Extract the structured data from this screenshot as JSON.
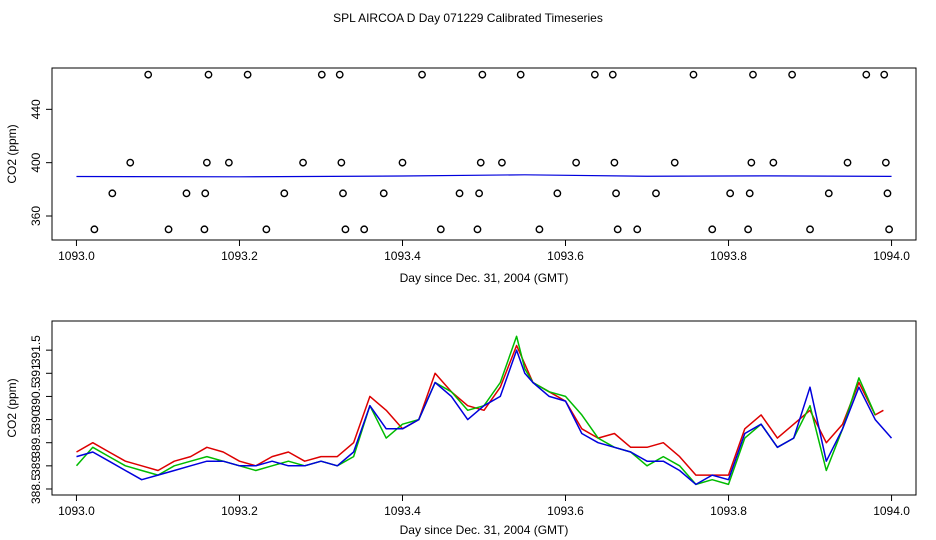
{
  "title": "SPL AIRCOA D  Day 071229  Calibrated Timeseries",
  "colors": {
    "red": "#dd0000",
    "green": "#00bb00",
    "blue": "#0000dd",
    "axis": "#000000"
  },
  "chart_data": [
    {
      "type": "scatter",
      "xlabel": "Day since Dec. 31, 2004 (GMT)",
      "ylabel": "CO2 (ppm)",
      "xlim": [
        1092.97,
        1094.03
      ],
      "ylim": [
        342,
        471
      ],
      "xticks": [
        1093.0,
        1093.2,
        1093.4,
        1093.6,
        1093.8,
        1094.0
      ],
      "xtick_labels": [
        "1093.0",
        "1093.2",
        "1093.4",
        "1093.6",
        "1093.8",
        "1094.0"
      ],
      "yticks": [
        360,
        400,
        440
      ],
      "ytick_labels": [
        "360",
        "400",
        "440"
      ],
      "line": {
        "x": [
          1093.0,
          1093.2,
          1093.4,
          1093.55,
          1093.7,
          1093.85,
          1094.0
        ],
        "y": [
          389.6,
          389.4,
          390.0,
          390.9,
          389.8,
          390.1,
          389.7
        ]
      },
      "points": [
        {
          "x": 1093.022,
          "y": 350
        },
        {
          "x": 1093.044,
          "y": 377
        },
        {
          "x": 1093.066,
          "y": 400
        },
        {
          "x": 1093.088,
          "y": 466
        },
        {
          "x": 1093.113,
          "y": 350
        },
        {
          "x": 1093.135,
          "y": 377
        },
        {
          "x": 1093.157,
          "y": 350
        },
        {
          "x": 1093.158,
          "y": 377
        },
        {
          "x": 1093.16,
          "y": 400
        },
        {
          "x": 1093.162,
          "y": 466
        },
        {
          "x": 1093.187,
          "y": 400
        },
        {
          "x": 1093.21,
          "y": 466
        },
        {
          "x": 1093.233,
          "y": 350
        },
        {
          "x": 1093.255,
          "y": 377
        },
        {
          "x": 1093.278,
          "y": 400
        },
        {
          "x": 1093.301,
          "y": 466
        },
        {
          "x": 1093.323,
          "y": 466
        },
        {
          "x": 1093.325,
          "y": 400
        },
        {
          "x": 1093.327,
          "y": 377
        },
        {
          "x": 1093.33,
          "y": 350
        },
        {
          "x": 1093.353,
          "y": 350
        },
        {
          "x": 1093.377,
          "y": 377
        },
        {
          "x": 1093.4,
          "y": 400
        },
        {
          "x": 1093.424,
          "y": 466
        },
        {
          "x": 1093.447,
          "y": 350
        },
        {
          "x": 1093.47,
          "y": 377
        },
        {
          "x": 1093.492,
          "y": 350
        },
        {
          "x": 1093.494,
          "y": 377
        },
        {
          "x": 1093.496,
          "y": 400
        },
        {
          "x": 1093.498,
          "y": 466
        },
        {
          "x": 1093.522,
          "y": 400
        },
        {
          "x": 1093.545,
          "y": 466
        },
        {
          "x": 1093.568,
          "y": 350
        },
        {
          "x": 1093.59,
          "y": 377
        },
        {
          "x": 1093.613,
          "y": 400
        },
        {
          "x": 1093.636,
          "y": 466
        },
        {
          "x": 1093.658,
          "y": 466
        },
        {
          "x": 1093.66,
          "y": 400
        },
        {
          "x": 1093.662,
          "y": 377
        },
        {
          "x": 1093.664,
          "y": 350
        },
        {
          "x": 1093.688,
          "y": 350
        },
        {
          "x": 1093.711,
          "y": 377
        },
        {
          "x": 1093.734,
          "y": 400
        },
        {
          "x": 1093.757,
          "y": 466
        },
        {
          "x": 1093.78,
          "y": 350
        },
        {
          "x": 1093.802,
          "y": 377
        },
        {
          "x": 1093.824,
          "y": 350
        },
        {
          "x": 1093.826,
          "y": 377
        },
        {
          "x": 1093.828,
          "y": 400
        },
        {
          "x": 1093.83,
          "y": 466
        },
        {
          "x": 1093.855,
          "y": 400
        },
        {
          "x": 1093.878,
          "y": 466
        },
        {
          "x": 1093.9,
          "y": 350
        },
        {
          "x": 1093.923,
          "y": 377
        },
        {
          "x": 1093.946,
          "y": 400
        },
        {
          "x": 1093.969,
          "y": 466
        },
        {
          "x": 1093.991,
          "y": 466
        },
        {
          "x": 1093.993,
          "y": 400
        },
        {
          "x": 1093.995,
          "y": 377
        },
        {
          "x": 1093.997,
          "y": 350
        }
      ]
    },
    {
      "type": "line",
      "xlabel": "Day since Dec. 31, 2004 (GMT)",
      "ylabel": "CO2 (ppm)",
      "xlim": [
        1092.97,
        1094.03
      ],
      "ylim": [
        388.37,
        392.13
      ],
      "xticks": [
        1093.0,
        1093.2,
        1093.4,
        1093.6,
        1093.8,
        1094.0
      ],
      "xtick_labels": [
        "1093.0",
        "1093.2",
        "1093.4",
        "1093.6",
        "1093.8",
        "1094.0"
      ],
      "yticks": [
        388.5,
        389.0,
        389.5,
        390.0,
        390.5,
        391.0,
        391.5
      ],
      "ytick_labels": [
        "388.5",
        "389",
        "389.5",
        "390",
        "390.5",
        "391",
        "391.5"
      ],
      "series": [
        {
          "color": "red",
          "x": [
            1093.0,
            1093.02,
            1093.04,
            1093.06,
            1093.08,
            1093.1,
            1093.12,
            1093.14,
            1093.16,
            1093.18,
            1093.2,
            1093.22,
            1093.24,
            1093.26,
            1093.28,
            1093.3,
            1093.32,
            1093.34,
            1093.36,
            1093.38,
            1093.4,
            1093.42,
            1093.44,
            1093.46,
            1093.48,
            1093.5,
            1093.52,
            1093.54,
            1093.55,
            1093.56,
            1093.58,
            1093.6,
            1093.62,
            1093.64,
            1093.66,
            1093.68,
            1093.7,
            1093.72,
            1093.74,
            1093.76,
            1093.78,
            1093.8,
            1093.82,
            1093.84,
            1093.86,
            1093.88,
            1093.9,
            1093.92,
            1093.94,
            1093.96,
            1093.98,
            1093.99
          ],
          "y": [
            389.3,
            389.5,
            389.3,
            389.1,
            389.0,
            388.9,
            389.1,
            389.2,
            389.4,
            389.3,
            389.1,
            389.0,
            389.2,
            389.3,
            389.1,
            389.2,
            389.2,
            389.5,
            390.5,
            390.2,
            389.8,
            390.0,
            391.0,
            390.6,
            390.3,
            390.2,
            390.7,
            391.6,
            391.2,
            390.8,
            390.6,
            390.4,
            389.8,
            389.6,
            389.7,
            389.4,
            389.4,
            389.5,
            389.2,
            388.8,
            388.8,
            388.8,
            389.8,
            390.1,
            389.6,
            389.9,
            390.2,
            389.5,
            389.9,
            390.8,
            390.1,
            390.2
          ]
        },
        {
          "color": "green",
          "x": [
            1093.0,
            1093.02,
            1093.04,
            1093.06,
            1093.08,
            1093.1,
            1093.12,
            1093.14,
            1093.16,
            1093.18,
            1093.2,
            1093.22,
            1093.24,
            1093.26,
            1093.28,
            1093.3,
            1093.32,
            1093.34,
            1093.36,
            1093.38,
            1093.4,
            1093.42,
            1093.44,
            1093.46,
            1093.48,
            1093.5,
            1093.52,
            1093.54,
            1093.55,
            1093.56,
            1093.58,
            1093.6,
            1093.62,
            1093.64,
            1093.66,
            1093.68,
            1093.7,
            1093.72,
            1093.74,
            1093.76,
            1093.78,
            1093.8,
            1093.82,
            1093.84,
            1093.86,
            1093.88,
            1093.9,
            1093.92,
            1093.94,
            1093.96,
            1093.98
          ],
          "y": [
            389.0,
            389.4,
            389.2,
            389.0,
            388.9,
            388.8,
            389.0,
            389.1,
            389.2,
            389.1,
            389.0,
            388.9,
            389.0,
            389.1,
            389.0,
            389.1,
            389.0,
            389.2,
            390.3,
            389.6,
            389.9,
            390.0,
            390.8,
            390.6,
            390.2,
            390.3,
            390.8,
            391.8,
            391.1,
            390.8,
            390.6,
            390.5,
            390.1,
            389.6,
            389.4,
            389.3,
            389.0,
            389.2,
            389.0,
            388.6,
            388.7,
            388.6,
            389.6,
            389.9,
            389.4,
            389.6,
            390.3,
            388.9,
            389.8,
            390.9,
            390.1
          ]
        },
        {
          "color": "blue",
          "x": [
            1093.0,
            1093.02,
            1093.04,
            1093.06,
            1093.08,
            1093.1,
            1093.12,
            1093.14,
            1093.16,
            1093.18,
            1093.2,
            1093.22,
            1093.24,
            1093.26,
            1093.28,
            1093.3,
            1093.32,
            1093.34,
            1093.36,
            1093.38,
            1093.4,
            1093.42,
            1093.44,
            1093.46,
            1093.48,
            1093.5,
            1093.52,
            1093.54,
            1093.55,
            1093.56,
            1093.58,
            1093.6,
            1093.62,
            1093.64,
            1093.66,
            1093.68,
            1093.7,
            1093.72,
            1093.74,
            1093.76,
            1093.78,
            1093.8,
            1093.82,
            1093.84,
            1093.86,
            1093.88,
            1093.9,
            1093.92,
            1093.94,
            1093.96,
            1093.98,
            1094.0
          ],
          "y": [
            389.2,
            389.3,
            389.1,
            388.9,
            388.7,
            388.8,
            388.9,
            389.0,
            389.1,
            389.1,
            389.0,
            389.0,
            389.1,
            389.0,
            389.0,
            389.1,
            389.0,
            389.3,
            390.3,
            389.8,
            389.8,
            390.0,
            390.8,
            390.5,
            390.0,
            390.3,
            390.5,
            391.5,
            391.0,
            390.8,
            390.5,
            390.4,
            389.7,
            389.5,
            389.4,
            389.3,
            389.1,
            389.1,
            388.9,
            388.6,
            388.8,
            388.7,
            389.7,
            389.9,
            389.4,
            389.6,
            390.7,
            389.1,
            389.8,
            390.7,
            390.0,
            389.6
          ]
        }
      ]
    }
  ]
}
